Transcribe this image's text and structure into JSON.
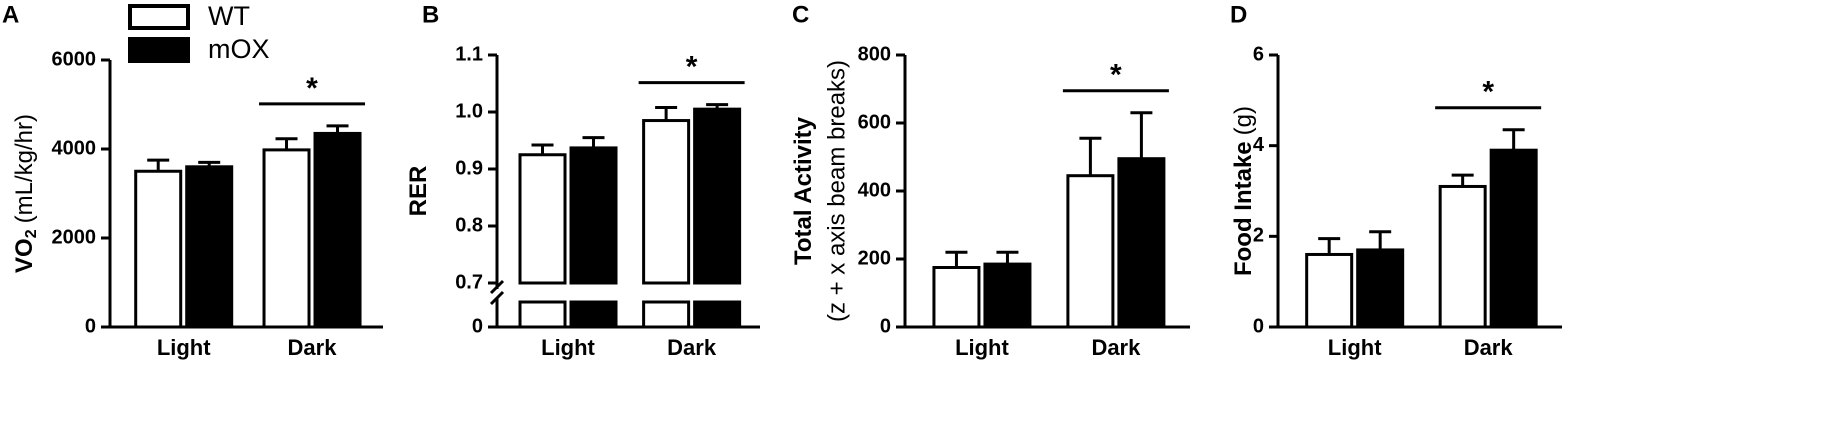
{
  "chart_data": [
    {
      "type": "bar",
      "panel": "A",
      "ylabel": "VO",
      "ylabel_subscript": "2",
      "ylabel_units": "(mL/kg/hr)",
      "categories": [
        "Light",
        "Dark"
      ],
      "series": [
        {
          "name": "WT",
          "color": "#ffffff",
          "values": [
            3500,
            3980
          ],
          "errors": [
            250,
            250
          ]
        },
        {
          "name": "mOX",
          "color": "#000000",
          "values": [
            3600,
            4350
          ],
          "errors": [
            100,
            170
          ]
        }
      ],
      "ylim": [
        0,
        6000
      ],
      "yticks": [
        0,
        2000,
        4000,
        6000
      ],
      "annotation": "*",
      "legend": "top-left"
    },
    {
      "type": "bar",
      "panel": "B",
      "ylabel": "RER",
      "categories": [
        "Light",
        "Dark"
      ],
      "series": [
        {
          "color": "#ffffff",
          "values": [
            0.925,
            0.985
          ],
          "errors": [
            0.017,
            0.023
          ]
        },
        {
          "color": "#000000",
          "values": [
            0.937,
            1.005
          ],
          "errors": [
            0.018,
            0.008
          ]
        }
      ],
      "ylim": [
        0.7,
        1.1
      ],
      "axis_break": [
        0,
        0.7
      ],
      "yticks": [
        0,
        0.7,
        0.8,
        0.9,
        {
          "value": 1,
          "label": "1.0"
        },
        1.1
      ],
      "annotation": "*"
    },
    {
      "type": "bar",
      "panel": "C",
      "ylabel": "Total Activity",
      "ylabel_units": "(z + x axis beam breaks)",
      "categories": [
        "Light",
        "Dark"
      ],
      "series": [
        {
          "color": "#ffffff",
          "values": [
            175,
            445
          ],
          "errors": [
            45,
            110
          ]
        },
        {
          "color": "#000000",
          "values": [
            185,
            495
          ],
          "errors": [
            35,
            135
          ]
        }
      ],
      "ylim": [
        0,
        800
      ],
      "yticks": [
        0,
        200,
        400,
        600,
        800
      ],
      "annotation": "*"
    },
    {
      "type": "bar",
      "panel": "D",
      "ylabel": "Food Intake",
      "ylabel_units": "(g)",
      "categories": [
        "Light",
        "Dark"
      ],
      "series": [
        {
          "color": "#ffffff",
          "values": [
            1.6,
            3.1
          ],
          "errors": [
            0.35,
            0.25
          ]
        },
        {
          "color": "#000000",
          "values": [
            1.7,
            3.9
          ],
          "errors": [
            0.4,
            0.45
          ]
        }
      ],
      "ylim": [
        0,
        6
      ],
      "yticks": [
        0,
        2,
        4,
        6
      ],
      "annotation": "*"
    }
  ]
}
